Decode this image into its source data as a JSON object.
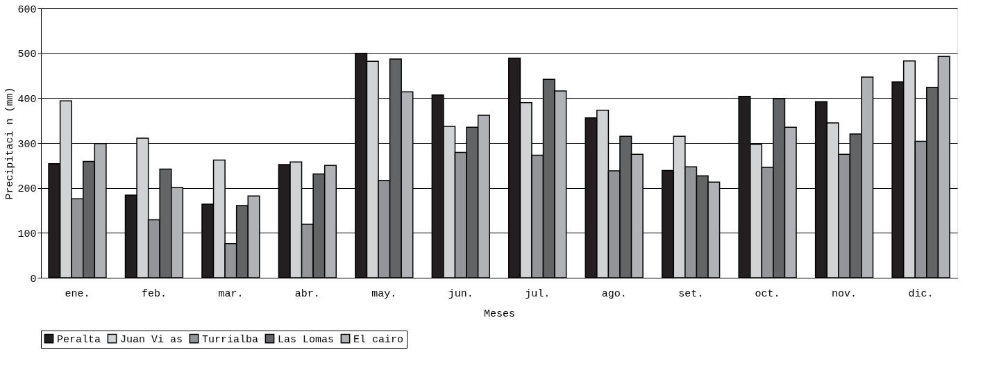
{
  "chart_data": {
    "type": "bar",
    "xlabel": "Meses",
    "ylabel": "Precipitaci n (mm)",
    "categories": [
      "ene.",
      "feb.",
      "mar.",
      "abr.",
      "may.",
      "jun.",
      "jul.",
      "ago.",
      "set.",
      "oct.",
      "nov.",
      "dic."
    ],
    "series": [
      {
        "name": "Peralta",
        "color": "#231f20",
        "values": [
          254,
          184,
          164,
          252,
          500,
          407,
          489,
          356,
          239,
          404,
          392,
          436
        ]
      },
      {
        "name": "Juan Vi as",
        "color": "#d1d2d4",
        "values": [
          394,
          311,
          262,
          258,
          482,
          337,
          390,
          373,
          315,
          297,
          345,
          483
        ]
      },
      {
        "name": "Turrialba",
        "color": "#939598",
        "values": [
          176,
          129,
          76,
          119,
          217,
          279,
          273,
          238,
          247,
          246,
          275,
          304
        ]
      },
      {
        "name": "Las Lomas",
        "color": "#636466",
        "values": [
          259,
          242,
          161,
          231,
          487,
          335,
          442,
          315,
          227,
          399,
          320,
          424
        ]
      },
      {
        "name": "El cairo",
        "color": "#b1b2b5",
        "values": [
          299,
          201,
          182,
          250,
          414,
          362,
          416,
          275,
          213,
          335,
          447,
          493
        ]
      }
    ],
    "ylim": [
      0,
      600
    ],
    "yticks": [
      0,
      100,
      200,
      300,
      400,
      500,
      600
    ],
    "grid": "y",
    "legend": "bottom"
  }
}
